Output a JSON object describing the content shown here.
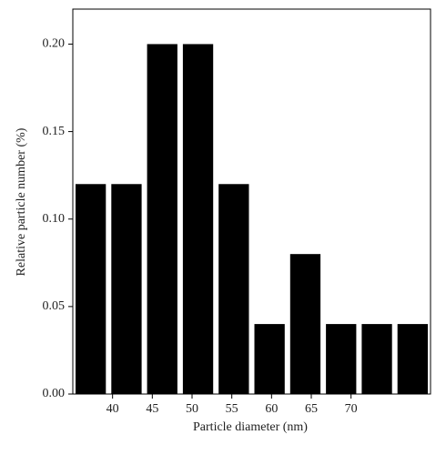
{
  "chart_data": {
    "type": "histogram",
    "x_label": "Particle diameter (nm)",
    "y_label": "Relative particle number (%)",
    "bins": [
      35,
      39.5,
      44,
      48.5,
      53,
      57.5,
      62,
      66.5,
      71,
      75.5,
      80
    ],
    "values": [
      0.12,
      0.12,
      0.2,
      0.2,
      0.12,
      0.04,
      0.08,
      0.04,
      0.04,
      0.04
    ],
    "color": "#000000",
    "xlim": [
      35,
      80
    ],
    "xticks": [
      40,
      45,
      50,
      55,
      60,
      65,
      70
    ],
    "ylim": [
      0,
      0.22
    ],
    "yticks": [
      {
        "value": 0,
        "label": "0.00"
      },
      {
        "value": 0.05,
        "label": "0.05"
      },
      {
        "value": 0.1,
        "label": "0.10"
      },
      {
        "value": 0.15,
        "label": "0.15"
      },
      {
        "value": 0.2,
        "label": "0.20"
      }
    ]
  }
}
